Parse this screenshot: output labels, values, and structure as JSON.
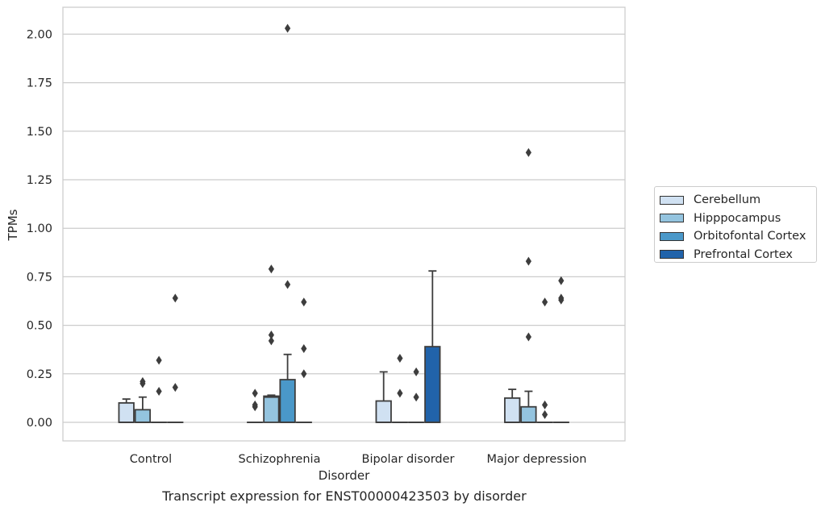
{
  "chart_data": {
    "type": "box",
    "categories": [
      "Control",
      "Schizophrenia",
      "Bipolar disorder",
      "Major depression"
    ],
    "hue_order": [
      "Cerebellum",
      "Hipppocampus",
      "Orbitofontal Cortex",
      "Prefrontal Cortex"
    ],
    "colors": [
      "#d0e1f2",
      "#94c4df",
      "#4a98c9",
      "#2163aa"
    ],
    "xlabel": "Disorder",
    "ylabel": "TPMs",
    "caption": "Transcript expression for ENST00000423503 by disorder",
    "ylim": [
      -0.1,
      2.13
    ],
    "yticks": [
      "0.00",
      "0.25",
      "0.50",
      "0.75",
      "1.00",
      "1.25",
      "1.50",
      "1.75",
      "2.00"
    ],
    "grid": true,
    "legend_position": "right",
    "boxes": [
      {
        "category": "Control",
        "hue": "Cerebellum",
        "q1": 0,
        "median": 0,
        "q3": 0.1,
        "whisker_low": 0,
        "whisker_high": 0.12,
        "outliers": []
      },
      {
        "category": "Control",
        "hue": "Hipppocampus",
        "q1": 0,
        "median": 0,
        "q3": 0.065,
        "whisker_low": 0,
        "whisker_high": 0.13,
        "outliers": [
          0.2,
          0.21
        ]
      },
      {
        "category": "Control",
        "hue": "Orbitofontal Cortex",
        "q1": 0,
        "median": 0,
        "q3": 0,
        "whisker_low": 0,
        "whisker_high": 0,
        "outliers": [
          0.16,
          0.32
        ]
      },
      {
        "category": "Control",
        "hue": "Prefrontal Cortex",
        "q1": 0,
        "median": 0,
        "q3": 0,
        "whisker_low": 0,
        "whisker_high": 0,
        "outliers": [
          0.18,
          0.64
        ]
      },
      {
        "category": "Schizophrenia",
        "hue": "Cerebellum",
        "q1": 0,
        "median": 0,
        "q3": 0,
        "whisker_low": 0,
        "whisker_high": 0,
        "outliers": [
          0.08,
          0.09,
          0.15
        ]
      },
      {
        "category": "Schizophrenia",
        "hue": "Hipppocampus",
        "q1": 0,
        "median": 0.13,
        "q3": 0.135,
        "whisker_low": 0,
        "whisker_high": 0.14,
        "outliers": [
          0.42,
          0.45,
          0.79
        ]
      },
      {
        "category": "Schizophrenia",
        "hue": "Orbitofontal Cortex",
        "q1": 0,
        "median": 0,
        "q3": 0.22,
        "whisker_low": 0,
        "whisker_high": 0.35,
        "outliers": [
          0.71,
          2.03
        ]
      },
      {
        "category": "Schizophrenia",
        "hue": "Prefrontal Cortex",
        "q1": 0,
        "median": 0,
        "q3": 0,
        "whisker_low": 0,
        "whisker_high": 0,
        "outliers": [
          0.25,
          0.38,
          0.62
        ]
      },
      {
        "category": "Bipolar disorder",
        "hue": "Cerebellum",
        "q1": 0,
        "median": 0,
        "q3": 0.11,
        "whisker_low": 0,
        "whisker_high": 0.26,
        "outliers": []
      },
      {
        "category": "Bipolar disorder",
        "hue": "Hipppocampus",
        "q1": 0,
        "median": 0,
        "q3": 0,
        "whisker_low": 0,
        "whisker_high": 0,
        "outliers": [
          0.15,
          0.33
        ]
      },
      {
        "category": "Bipolar disorder",
        "hue": "Orbitofontal Cortex",
        "q1": 0,
        "median": 0,
        "q3": 0,
        "whisker_low": 0,
        "whisker_high": 0,
        "outliers": [
          0.13,
          0.26
        ]
      },
      {
        "category": "Bipolar disorder",
        "hue": "Prefrontal Cortex",
        "q1": 0,
        "median": 0,
        "q3": 0.39,
        "whisker_low": 0,
        "whisker_high": 0.78,
        "outliers": []
      },
      {
        "category": "Major depression",
        "hue": "Cerebellum",
        "q1": 0,
        "median": 0,
        "q3": 0.125,
        "whisker_low": 0,
        "whisker_high": 0.17,
        "outliers": []
      },
      {
        "category": "Major depression",
        "hue": "Hipppocampus",
        "q1": 0,
        "median": 0,
        "q3": 0.08,
        "whisker_low": 0,
        "whisker_high": 0.16,
        "outliers": [
          0.44,
          0.83,
          1.39
        ]
      },
      {
        "category": "Major depression",
        "hue": "Orbitofontal Cortex",
        "q1": 0,
        "median": 0,
        "q3": 0,
        "whisker_low": 0,
        "whisker_high": 0,
        "outliers": [
          0.04,
          0.09,
          0.62
        ]
      },
      {
        "category": "Major depression",
        "hue": "Prefrontal Cortex",
        "q1": 0,
        "median": 0,
        "q3": 0,
        "whisker_low": 0,
        "whisker_high": 0,
        "outliers": [
          0.63,
          0.64,
          0.73
        ]
      }
    ]
  }
}
